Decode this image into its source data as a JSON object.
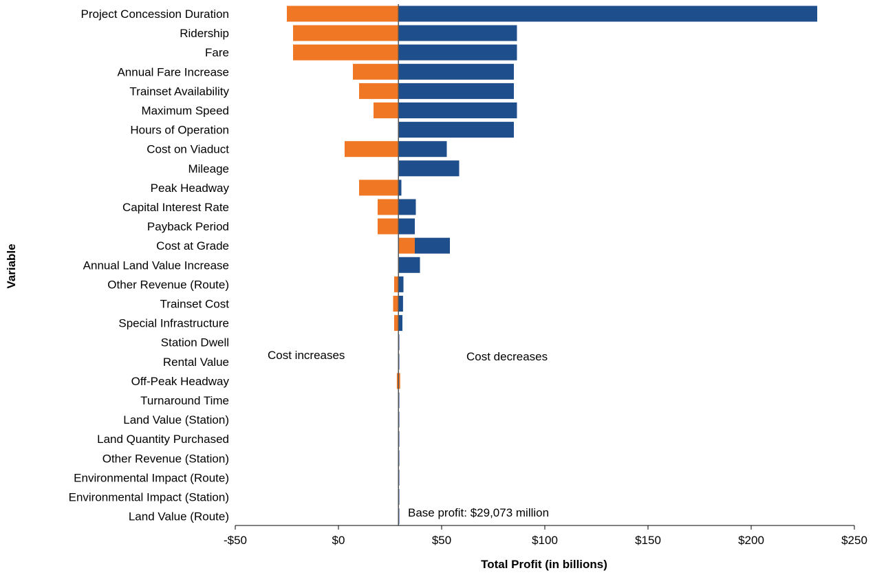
{
  "chart_data": {
    "type": "bar",
    "orientation": "horizontal",
    "subtype": "tornado",
    "xlabel": "Total Profit (in billions)",
    "ylabel": "Variable",
    "xlim": [
      -50,
      250
    ],
    "xticks": [
      -50,
      0,
      50,
      100,
      150,
      200,
      250
    ],
    "xtick_labels": [
      "-$50",
      "$0",
      "$50",
      "$100",
      "$150",
      "$200",
      "$250"
    ],
    "base": 29.073,
    "colors": {
      "increase": "#F07723",
      "decrease": "#1F4E8C",
      "baseline": "#555555"
    },
    "categories": [
      "Project Concession Duration",
      "Ridership",
      "Fare",
      "Annual Fare Increase",
      "Trainset Availability",
      "Maximum Speed",
      "Hours of Operation",
      "Cost on Viaduct",
      "Mileage",
      "Peak Headway",
      "Capital Interest Rate",
      "Payback Period",
      "Cost at Grade",
      "Annual Land Value Increase",
      "Other Revenue (Route)",
      "Trainset Cost",
      "Special Infrastructure",
      "Station Dwell",
      "Rental Value",
      "Off-Peak Headway",
      "Turnaround Time",
      "Land Value (Station)",
      "Land Quantity Purchased",
      "Other Revenue (Station)",
      "Environmental Impact (Route)",
      "Environmental Impact (Station)",
      "Land Value (Route)"
    ],
    "series": [
      {
        "name": "Cost increases",
        "ranges": [
          [
            -25,
            29.073
          ],
          [
            -22,
            29.073
          ],
          [
            -22,
            29.073
          ],
          [
            7,
            29.073
          ],
          [
            10,
            29.073
          ],
          [
            17,
            29.073
          ],
          [
            29.073,
            29.073
          ],
          [
            3,
            29.073
          ],
          [
            29.073,
            29.073
          ],
          [
            10,
            29.073
          ],
          [
            19,
            29.073
          ],
          [
            19,
            29.073
          ],
          [
            29.073,
            37
          ],
          [
            29.073,
            29.073
          ],
          [
            27,
            29.073
          ],
          [
            26.5,
            29.073
          ],
          [
            27,
            29.073
          ],
          [
            29.073,
            29.073
          ],
          [
            29.073,
            29.073
          ],
          [
            28.3,
            29.9
          ],
          [
            29.073,
            29.073
          ],
          [
            29.073,
            29.073
          ],
          [
            29.073,
            29.073
          ],
          [
            29.073,
            29.073
          ],
          [
            29.073,
            29.073
          ],
          [
            29.073,
            29.073
          ],
          [
            29.073,
            29.073
          ]
        ]
      },
      {
        "name": "Cost decreases",
        "ranges": [
          [
            29.073,
            232
          ],
          [
            29.073,
            86.5
          ],
          [
            29.073,
            86.5
          ],
          [
            29.073,
            85
          ],
          [
            29.073,
            85
          ],
          [
            29.073,
            86.5
          ],
          [
            29.073,
            85
          ],
          [
            29.073,
            52.5
          ],
          [
            29.073,
            58.5
          ],
          [
            29.073,
            30.5
          ],
          [
            29.073,
            37.5
          ],
          [
            29.073,
            37
          ],
          [
            37,
            54
          ],
          [
            29.073,
            39.5
          ],
          [
            29.073,
            31.5
          ],
          [
            29.073,
            31.3
          ],
          [
            29.073,
            31
          ],
          [
            29.073,
            29.5
          ],
          [
            29.073,
            29.5
          ],
          [
            29.073,
            29.073
          ],
          [
            29.073,
            29.5
          ],
          [
            29.073,
            29.5
          ],
          [
            29.073,
            29.5
          ],
          [
            29.073,
            29.5
          ],
          [
            29.073,
            29.5
          ],
          [
            29.073,
            29.5
          ],
          [
            29.073,
            29.5
          ]
        ]
      }
    ],
    "annotations": {
      "left": "Cost increases",
      "right": "Cost decreases",
      "base": "Base profit: $29,073 million"
    }
  }
}
